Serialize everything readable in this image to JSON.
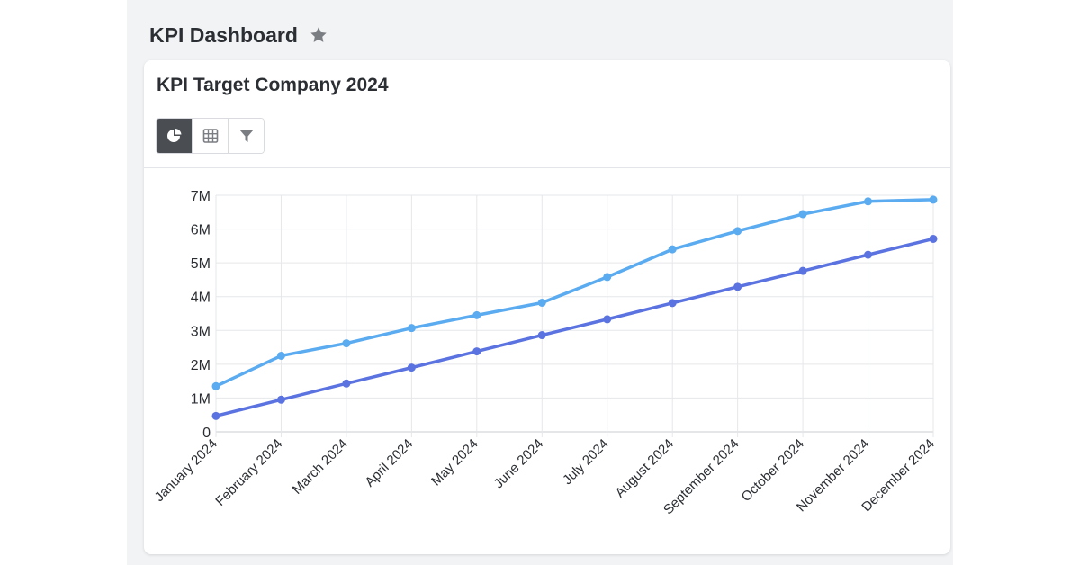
{
  "header": {
    "title": "KPI Dashboard"
  },
  "card": {
    "title": "KPI Target Company 2024"
  },
  "toolbar": {
    "buttons": [
      {
        "name": "chart-view",
        "icon": "pie-chart-icon",
        "active": true
      },
      {
        "name": "table-view",
        "icon": "grid-table-icon",
        "active": false
      },
      {
        "name": "filter",
        "icon": "filter-icon",
        "active": false
      }
    ]
  },
  "chart_data": {
    "type": "line",
    "title": "",
    "xlabel": "",
    "ylabel": "",
    "categories": [
      "January 2024",
      "February 2024",
      "March 2024",
      "April 2024",
      "May 2024",
      "June 2024",
      "July 2024",
      "August 2024",
      "September 2024",
      "October 2024",
      "November 2024",
      "December 2024"
    ],
    "y_tick_labels": [
      "0",
      "1M",
      "2M",
      "3M",
      "4M",
      "5M",
      "6M",
      "7M"
    ],
    "ylim": [
      0,
      7000000
    ],
    "grid": true,
    "series": [
      {
        "color": "#5aabf0",
        "values": [
          1350000,
          2250000,
          2620000,
          3070000,
          3450000,
          3820000,
          4580000,
          5400000,
          5940000,
          6440000,
          6820000,
          6870000
        ]
      },
      {
        "color": "#5b73e0",
        "values": [
          470000,
          950000,
          1430000,
          1900000,
          2380000,
          2860000,
          3330000,
          3810000,
          4290000,
          4760000,
          5240000,
          5710000
        ]
      }
    ]
  },
  "colors": {
    "accent_dark": "#4a4d52",
    "panel_bg": "#f2f3f5",
    "icon_gray": "#7a7d82"
  }
}
